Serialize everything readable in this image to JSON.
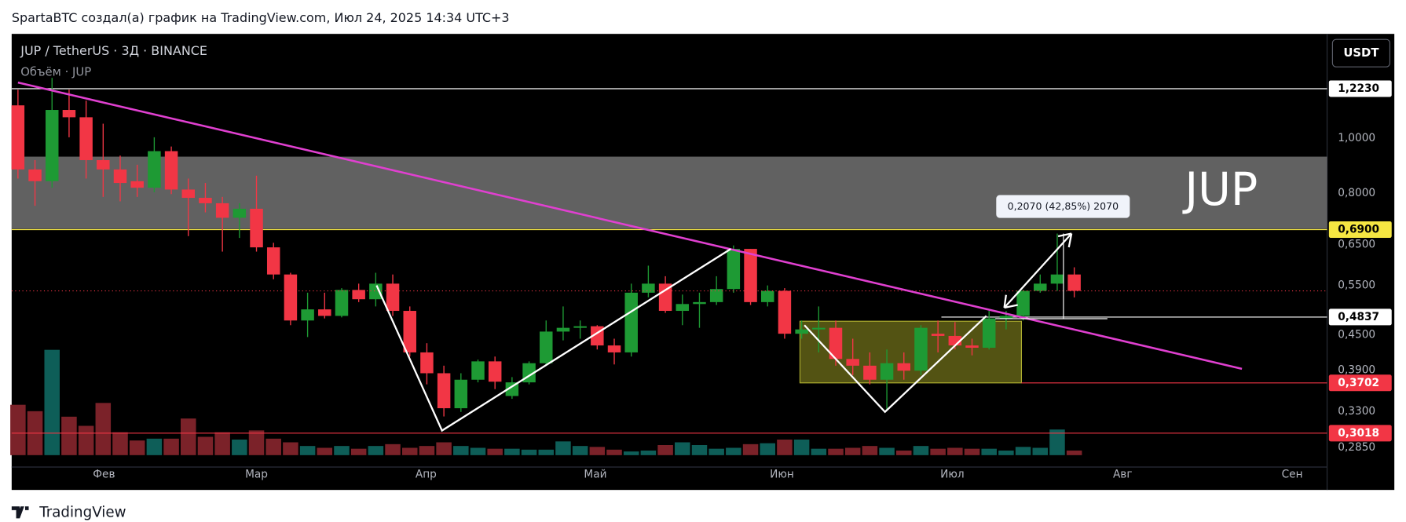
{
  "header": "SpartaBTC создал(а) график на TradingView.com, Июл 24, 2025 14:34 UTC+3",
  "footer": "TradingView",
  "chart_data": {
    "type": "candlestick",
    "title": "JUP / TetherUS · 3Д · BINANCE",
    "subtitle": "Объём · JUP",
    "currency": "USDT",
    "watermark": "JUP",
    "log_scale": true,
    "up_color": "#1e9a34",
    "down_color": "#f23645",
    "categories": [
      null,
      null,
      null,
      null,
      null,
      null,
      null,
      null,
      null,
      null,
      null,
      null,
      null,
      null,
      null,
      null,
      null,
      null,
      null,
      null,
      null,
      null,
      null,
      null,
      null,
      null,
      null,
      null,
      null,
      null,
      null,
      null,
      null,
      null,
      null,
      null,
      null,
      null,
      null,
      null,
      null,
      null,
      null,
      null,
      null,
      null,
      null,
      null,
      null,
      null,
      null,
      null,
      null,
      null,
      null,
      null,
      null,
      null,
      null,
      null,
      null,
      null,
      null
    ],
    "open": [
      1.143,
      0.881,
      0.84,
      1.122,
      1.089,
      0.915,
      0.881,
      0.84,
      0.818,
      0.949,
      0.812,
      0.785,
      0.768,
      0.724,
      0.751,
      0.642,
      0.575,
      0.477,
      0.499,
      0.486,
      0.54,
      0.52,
      0.554,
      0.496,
      0.419,
      0.385,
      0.334,
      0.375,
      0.404,
      0.351,
      0.371,
      0.401,
      0.456,
      0.463,
      0.466,
      0.431,
      0.419,
      0.534,
      0.554,
      0.496,
      0.51,
      0.514,
      0.542,
      0.638,
      0.514,
      0.538,
      0.452,
      0.46,
      0.463,
      0.408,
      0.397,
      0.375,
      0.401,
      0.389,
      0.452,
      0.448,
      0.431,
      0.427,
      0.481,
      0.486,
      0.538,
      0.554,
      0.575
    ],
    "high": [
      1.218,
      0.915,
      1.278,
      1.218,
      1.165,
      1.061,
      0.932,
      0.898,
      1.004,
      0.967,
      0.849,
      0.834,
      0.788,
      0.768,
      0.859,
      0.654,
      0.579,
      0.534,
      0.534,
      0.544,
      0.554,
      0.579,
      0.575,
      0.505,
      0.435,
      0.397,
      0.385,
      0.407,
      0.412,
      0.379,
      0.404,
      0.477,
      0.505,
      0.477,
      0.468,
      0.443,
      0.554,
      0.596,
      0.571,
      0.53,
      0.534,
      0.571,
      0.647,
      0.638,
      0.55,
      0.544,
      0.477,
      0.505,
      0.477,
      0.443,
      0.419,
      0.424,
      0.419,
      0.468,
      0.477,
      0.474,
      0.443,
      0.496,
      0.496,
      0.54,
      0.575,
      0.679,
      0.592
    ],
    "low": [
      0.849,
      0.76,
      0.818,
      1.004,
      0.849,
      0.788,
      0.774,
      0.788,
      0.803,
      0.797,
      0.672,
      0.74,
      0.631,
      0.667,
      0.631,
      0.564,
      0.468,
      0.446,
      0.481,
      0.483,
      0.514,
      0.505,
      0.486,
      0.412,
      0.368,
      0.323,
      0.329,
      0.371,
      0.361,
      0.347,
      0.368,
      0.397,
      0.44,
      0.443,
      0.424,
      0.399,
      0.412,
      0.524,
      0.492,
      0.468,
      0.463,
      0.508,
      0.534,
      0.508,
      0.505,
      0.443,
      0.443,
      0.419,
      0.397,
      0.382,
      0.368,
      0.331,
      0.375,
      0.382,
      0.419,
      0.424,
      0.414,
      0.424,
      0.46,
      0.477,
      0.534,
      0.538,
      0.524
    ],
    "close": [
      0.881,
      0.84,
      1.122,
      1.089,
      0.915,
      0.881,
      0.834,
      0.818,
      0.949,
      0.812,
      0.785,
      0.768,
      0.724,
      0.751,
      0.642,
      0.575,
      0.477,
      0.499,
      0.486,
      0.54,
      0.52,
      0.554,
      0.496,
      0.419,
      0.385,
      0.334,
      0.375,
      0.404,
      0.372,
      0.371,
      0.401,
      0.456,
      0.463,
      0.466,
      0.431,
      0.419,
      0.534,
      0.554,
      0.496,
      0.51,
      0.514,
      0.542,
      0.638,
      0.514,
      0.538,
      0.452,
      0.46,
      0.463,
      0.408,
      0.397,
      0.375,
      0.401,
      0.389,
      0.463,
      0.448,
      0.431,
      0.427,
      0.481,
      0.486,
      0.538,
      0.554,
      0.575,
      0.538
    ],
    "volume": [
      55,
      48,
      115,
      42,
      32,
      57,
      25,
      16,
      18,
      18,
      40,
      20,
      25,
      17,
      27,
      18,
      14,
      10,
      8,
      10,
      7,
      10,
      12,
      8,
      10,
      14,
      10,
      8,
      7,
      7,
      6,
      6,
      15,
      10,
      9,
      6,
      4,
      5,
      11,
      14,
      11,
      7,
      8,
      12,
      13,
      17,
      17,
      7,
      7,
      8,
      10,
      8,
      5,
      10,
      7,
      8,
      7,
      7,
      5,
      9,
      8,
      28,
      5
    ],
    "volume_ylim": [
      0,
      460
    ],
    "volume_up_color": "#0e5e58",
    "volume_down_color": "#7b2229",
    "xlim": [
      -0.37,
      76.84
    ],
    "xticks": [
      {
        "value": 5.05,
        "label": "Фев"
      },
      {
        "value": 14,
        "label": "Мар"
      },
      {
        "value": 23.95,
        "label": "Апр"
      },
      {
        "value": 33.89,
        "label": "Май"
      },
      {
        "value": 44.84,
        "label": "Июн"
      },
      {
        "value": 54.84,
        "label": "Июл"
      },
      {
        "value": 64.84,
        "label": "Авг"
      },
      {
        "value": 74.79,
        "label": "Сен"
      }
    ],
    "ylim": [
      0.263,
      1.528
    ],
    "yticks": [
      {
        "value": 1,
        "label": "1,0000"
      },
      {
        "value": 0.8,
        "label": "0,8000"
      },
      {
        "value": 0.65,
        "label": "0,6500"
      },
      {
        "value": 0.55,
        "label": "0,5500"
      },
      {
        "value": 0.45,
        "label": "0,4500"
      },
      {
        "value": 0.39,
        "label": "0,3900"
      },
      {
        "value": 0.33,
        "label": "0,3300"
      },
      {
        "value": 0.285,
        "label": "0,2850"
      }
    ],
    "levels": [
      {
        "value": 1.223,
        "label": "1,2230",
        "color": "#ffffff"
      },
      {
        "value": 0.69,
        "label": "0,6900",
        "color": "#f5e642"
      },
      {
        "value": 0.4837,
        "label": "0,4837",
        "color": "#ffffff",
        "from": 54.2
      },
      {
        "value": 0.3702,
        "label": "0,3702",
        "color": "#f23645",
        "from": 58.9
      },
      {
        "value": 0.3018,
        "label": "0,3018",
        "color": "#f23645"
      }
    ],
    "zone": {
      "ylim": [
        0.692,
        0.928
      ],
      "color": "#8a8a8a"
    },
    "box": {
      "xlim": [
        45.9,
        58.9
      ],
      "ylim": [
        0.3702,
        0.4756
      ],
      "color": "#8a8a20"
    },
    "trendline": {
      "x": [
        0,
        71.84
      ],
      "y": [
        1.254,
        0.392
      ],
      "color": "#e040d0"
    },
    "patterns": [
      {
        "x": [
          21.05,
          24.89,
          41.84
        ],
        "y": [
          0.55,
          0.305,
          0.638
        ],
        "color": "#ffffff"
      },
      {
        "x": [
          46.16,
          50.89,
          56.84
        ],
        "y": [
          0.468,
          0.329,
          0.486
        ],
        "color": "#ffffff"
      }
    ],
    "measure_label": "0,2070 (42,85%) 2070"
  }
}
